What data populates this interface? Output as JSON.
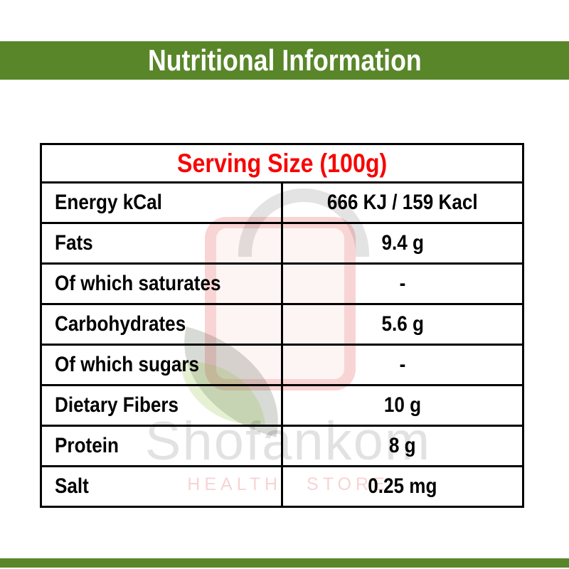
{
  "banner": {
    "title": "Nutritional Information"
  },
  "table": {
    "header": "Serving Size (100g)",
    "columns": [
      "nutrient",
      "amount_per_100g"
    ],
    "rows": [
      {
        "label": "Energy kCal",
        "value": "666 KJ / 159 Kacl"
      },
      {
        "label": "Fats",
        "value": "9.4 g"
      },
      {
        "label": "Of which saturates",
        "value": "-"
      },
      {
        "label": "Carbohydrates",
        "value": "5.6 g"
      },
      {
        "label": "Of which sugars",
        "value": "-"
      },
      {
        "label": "Dietary Fibers",
        "value": "10 g"
      },
      {
        "label": "Protein",
        "value": "8 g"
      },
      {
        "label": "Salt",
        "value": "0.25 mg"
      }
    ]
  },
  "watermark": {
    "brand": "Shofankom",
    "tagline": "HEALTH STORE",
    "logo_icon": "shopping-bag-with-leaves"
  },
  "colors": {
    "accent_green": "#588629",
    "header_red": "#f70505",
    "border_black": "#000000",
    "background": "#ffffff"
  }
}
